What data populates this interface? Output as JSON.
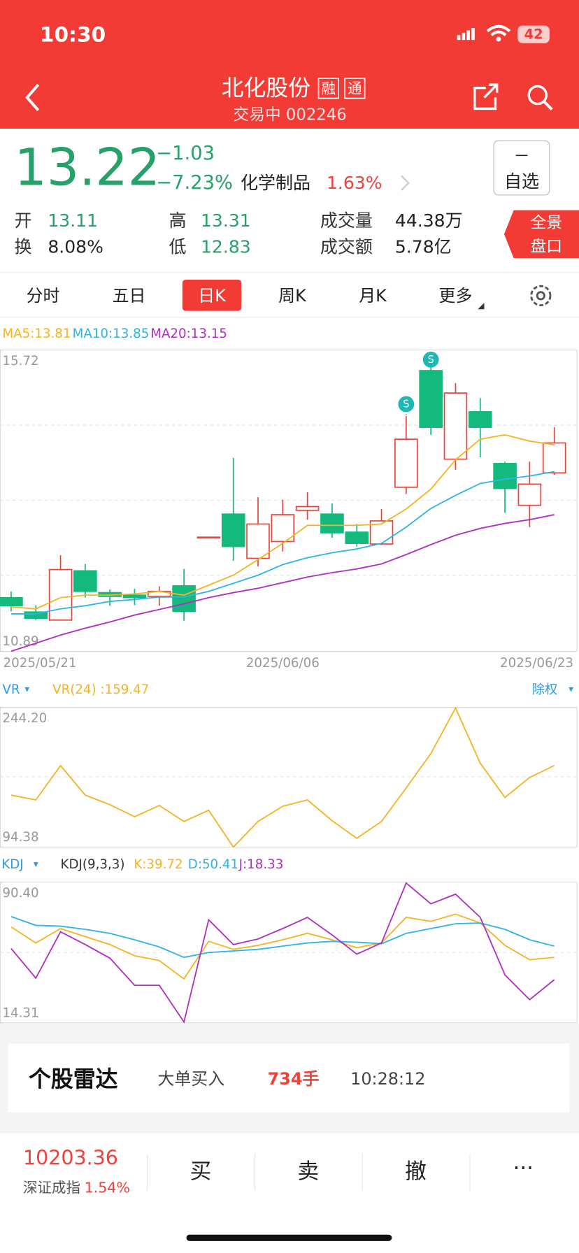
{
  "status": {
    "time": "10:30",
    "battery": "42"
  },
  "header": {
    "title": "北化股份",
    "badges": [
      "融",
      "通"
    ],
    "subtitle": "交易中 002246"
  },
  "quote": {
    "price": "13.22",
    "change": "−1.03",
    "change_pct": "−7.23%",
    "sector": "化学制品",
    "sector_pct": "1.63%",
    "watch_icon": "－",
    "watch": "自选",
    "stats": [
      [
        "开",
        "13.11"
      ],
      [
        "高",
        "13.31"
      ],
      [
        "成交量",
        "44.38万"
      ],
      [
        "换",
        "8.08%"
      ],
      [
        "低",
        "12.83"
      ],
      [
        "成交额",
        "5.78亿"
      ]
    ],
    "tag": [
      "全景",
      "盘口"
    ]
  },
  "tabs": [
    "分时",
    "五日",
    "日K",
    "周K",
    "月K",
    "更多"
  ],
  "kline": {
    "type": "candlestick",
    "categories": [
      "2025/05/21",
      null,
      null,
      null,
      null,
      null,
      null,
      null,
      null,
      null,
      null,
      "2025/06/06",
      null,
      null,
      null,
      null,
      null,
      null,
      null,
      null,
      null,
      null,
      "2025/06/23"
    ],
    "open": [
      11.75,
      11.52,
      11.39,
      12.18,
      11.83,
      11.79,
      11.77,
      11.94,
      12.71,
      13.09,
      12.38,
      12.65,
      13.15,
      13.09,
      12.8,
      12.61,
      13.52,
      15.39,
      13.97,
      14.73,
      13.9,
      13.23,
      13.75
    ],
    "close": [
      11.62,
      11.42,
      12.2,
      11.85,
      11.77,
      11.75,
      11.85,
      11.53,
      12.72,
      12.57,
      12.93,
      13.08,
      13.21,
      12.79,
      12.62,
      12.98,
      14.29,
      14.48,
      15.03,
      14.48,
      13.5,
      13.57,
      14.23
    ],
    "high": [
      11.85,
      11.63,
      12.43,
      12.29,
      11.88,
      11.89,
      11.93,
      12.21,
      12.72,
      13.99,
      13.36,
      13.32,
      13.44,
      13.26,
      12.93,
      13.17,
      14.66,
      15.59,
      15.19,
      14.95,
      13.93,
      13.93,
      14.48
    ],
    "low": [
      11.53,
      11.39,
      11.39,
      11.75,
      11.62,
      11.63,
      11.62,
      11.38,
      12.71,
      12.34,
      12.25,
      12.49,
      13.0,
      12.71,
      12.57,
      12.59,
      13.41,
      14.36,
      13.8,
      14.0,
      13.11,
      12.88,
      13.72
    ],
    "signals": [
      null,
      null,
      null,
      null,
      null,
      null,
      null,
      null,
      null,
      null,
      null,
      null,
      null,
      null,
      null,
      null,
      "S",
      "S",
      null,
      null,
      null,
      null,
      null
    ],
    "up_color": "#e8453c",
    "down_color": "#14b97d",
    "signal_color": "#1fb7b3",
    "series": [
      {
        "name": "MA5:13.81",
        "color": "#f5b324",
        "values": [
          11.6,
          11.57,
          11.75,
          11.79,
          11.79,
          11.81,
          11.85,
          11.79,
          11.95,
          12.11,
          12.36,
          12.62,
          12.91,
          12.91,
          12.91,
          12.93,
          13.17,
          13.49,
          13.96,
          14.29,
          14.36,
          14.26,
          14.2
        ]
      },
      {
        "name": "MA10:13.85",
        "color": "#2fb3e8",
        "values": [
          11.49,
          11.49,
          11.57,
          11.62,
          11.69,
          11.72,
          11.76,
          11.76,
          11.85,
          11.98,
          12.11,
          12.28,
          12.39,
          12.47,
          12.53,
          12.62,
          12.88,
          13.18,
          13.39,
          13.58,
          13.65,
          13.7,
          13.77
        ]
      },
      {
        "name": "MA20:13.15",
        "color": "#b02fc1",
        "values": [
          10.89,
          11.02,
          11.15,
          11.26,
          11.36,
          11.47,
          11.56,
          11.65,
          11.75,
          11.83,
          11.9,
          11.99,
          12.08,
          12.15,
          12.21,
          12.29,
          12.44,
          12.6,
          12.75,
          12.86,
          12.94,
          13.0,
          13.08
        ]
      }
    ],
    "ylim": [
      10.89,
      15.72
    ],
    "yticks": [
      10.89,
      15.72
    ]
  },
  "vr": {
    "type": "line",
    "label": "VR",
    "right_label": "除权",
    "series": [
      {
        "name": "VR(24) :159.47",
        "color": "#f5b324",
        "values": [
          150.0,
          144.9,
          181.7,
          150.0,
          139.8,
          126.9,
          138.9,
          121.8,
          133.8,
          94.4,
          121.8,
          138.1,
          144.9,
          122.6,
          103.8,
          121.8,
          157.7,
          194.6,
          243.3,
          184.3,
          147.5,
          168.9,
          181.7
        ]
      }
    ],
    "ylim": [
      94.38,
      244.2
    ],
    "yticks": [
      94.38,
      {
        "value": 244.2,
        "label": "244.20"
      }
    ]
  },
  "kdj": {
    "type": "line",
    "label": "KDJ",
    "params": "KDJ(9,3,3)",
    "series": [
      {
        "name": "K:39.72",
        "color": "#f5b324",
        "values": [
          66.19,
          57.55,
          65.33,
          60.98,
          56.68,
          50.63,
          48.03,
          38.09,
          58.41,
          54.09,
          56.25,
          59.27,
          62.73,
          59.27,
          54.95,
          57.55,
          71.38,
          69.22,
          73.11,
          68.35,
          56.25,
          48.47,
          49.76
        ]
      },
      {
        "name": "D:50.41",
        "color": "#2fb3e8",
        "values": [
          71.81,
          67.06,
          66.62,
          64.89,
          62.73,
          59.27,
          55.38,
          49.76,
          52.36,
          53.22,
          54.09,
          55.82,
          57.55,
          58.41,
          57.98,
          57.11,
          62.73,
          65.33,
          67.92,
          68.35,
          64.89,
          59.27,
          55.82
        ]
      },
      {
        "name": "J:18.33",
        "color": "#b02fc1",
        "values": [
          54.52,
          38.52,
          63.6,
          56.68,
          49.33,
          34.63,
          34.63,
          14.75,
          70.08,
          56.68,
          59.71,
          65.33,
          71.38,
          61.87,
          51.49,
          57.55,
          89.97,
          78.73,
          83.92,
          71.38,
          40.25,
          26.85,
          37.66
        ]
      }
    ],
    "ylim": [
      14.31,
      90.4
    ],
    "yticks": [
      14.31,
      {
        "value": 90.4,
        "label": "90.40"
      }
    ]
  },
  "radar": {
    "title": "个股雷达",
    "event": "大单买入",
    "amount": "734手",
    "time": "10:28:12"
  },
  "bottom": {
    "index_value": "10203.36",
    "index_name": "深证成指",
    "index_pct": "1.54%",
    "actions": [
      "买",
      "卖",
      "撤",
      "···"
    ]
  }
}
